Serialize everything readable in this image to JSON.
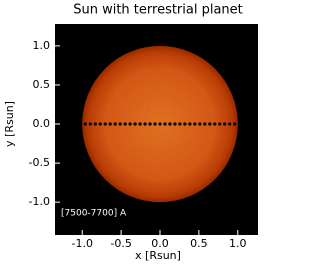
{
  "chart_data": {
    "type": "scatter",
    "title": "Sun with terrestrial planet",
    "x_label": "x [Rsun]",
    "y_label": "y [Rsun]",
    "annotation": "[7500-7700] A",
    "disk_center": [
      0,
      0
    ],
    "disk_radius": 1,
    "x": [
      -0.96,
      -0.896,
      -0.832,
      -0.768,
      -0.704,
      -0.64,
      -0.576,
      -0.512,
      -0.448,
      -0.384,
      -0.32,
      -0.256,
      -0.192,
      -0.128,
      -0.064,
      0,
      0.064,
      0.128,
      0.192,
      0.256,
      0.32,
      0.384,
      0.448,
      0.512,
      0.576,
      0.64,
      0.704,
      0.768,
      0.832,
      0.896,
      0.96
    ],
    "values": [
      0,
      0,
      0,
      0,
      0,
      0,
      0,
      0,
      0,
      0,
      0,
      0,
      0,
      0,
      0,
      0,
      0,
      0,
      0,
      0,
      0,
      0,
      0,
      0,
      0,
      0,
      0,
      0,
      0,
      0,
      0
    ],
    "color": "#000000",
    "xlim": [
      -1.35,
      1.26
    ],
    "ylim": [
      -1.42,
      1.28
    ],
    "xticks": [
      {
        "value": -1,
        "label": "-1.0"
      },
      {
        "value": -0.5,
        "label": "-0.5"
      },
      {
        "value": 0,
        "label": "0.0"
      },
      {
        "value": 0.5,
        "label": "0.5"
      },
      {
        "value": 1,
        "label": "1.0"
      }
    ],
    "yticks": [
      {
        "value": -1,
        "label": "-1.0"
      },
      {
        "value": -0.5,
        "label": "-0.5"
      },
      {
        "value": 0,
        "label": "0.0"
      },
      {
        "value": 0.5,
        "label": "0.5"
      },
      {
        "value": 1,
        "label": "1.0"
      }
    ]
  }
}
